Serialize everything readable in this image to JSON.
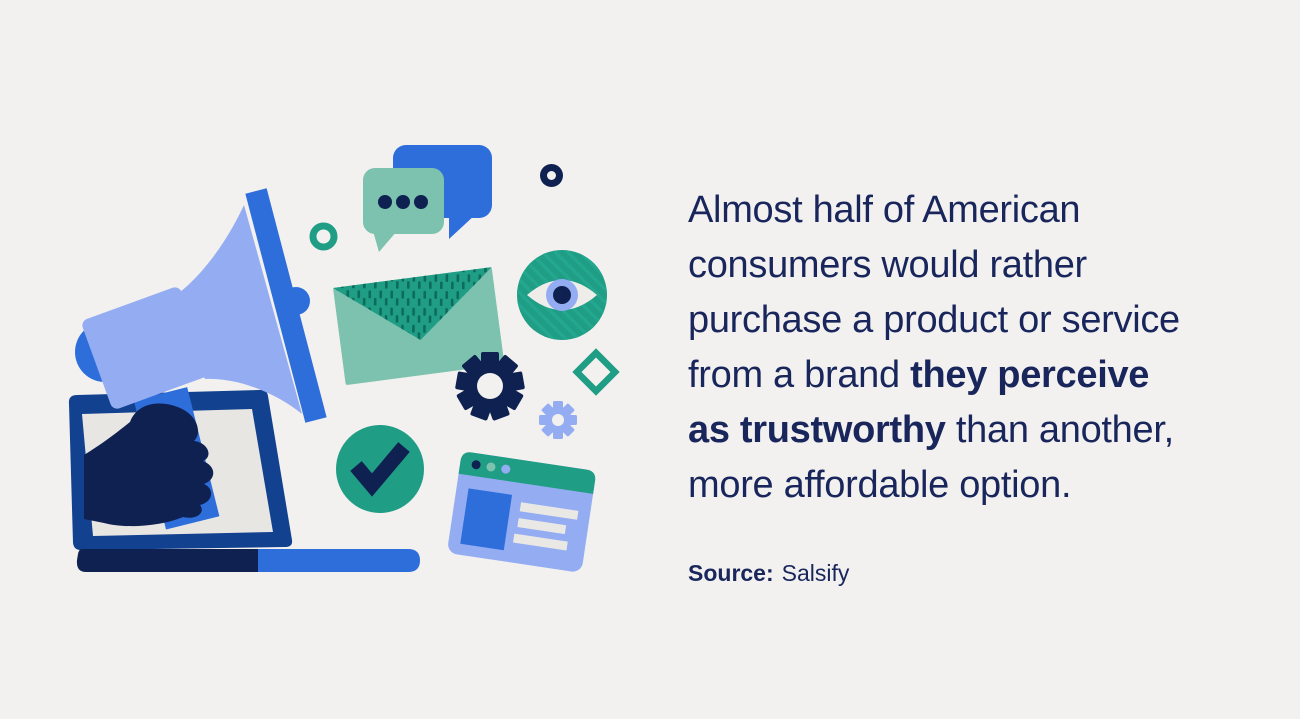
{
  "background_color": "#f3f1ef",
  "quote": {
    "lines": [
      {
        "segments": [
          {
            "text": "Almost half of American",
            "bold": false
          }
        ]
      },
      {
        "segments": [
          {
            "text": "consumers would rather",
            "bold": false
          }
        ]
      },
      {
        "segments": [
          {
            "text": "purchase a product or service",
            "bold": false
          }
        ]
      },
      {
        "segments": [
          {
            "text": "from a brand ",
            "bold": false
          },
          {
            "text": "they perceive",
            "bold": true
          }
        ]
      },
      {
        "segments": [
          {
            "text": "as trustworthy",
            "bold": true
          },
          {
            "text": " than another,",
            "bold": false
          }
        ]
      },
      {
        "segments": [
          {
            "text": "more affordable option.",
            "bold": false
          }
        ]
      }
    ],
    "full_text": "Almost half of American consumers would rather purchase a product or service from a brand they perceive as trustworthy than another, more affordable option."
  },
  "source": {
    "label": "Source:",
    "value": "Salsify"
  },
  "colors": {
    "background": "#f3f1ef",
    "text_navy": "#19265c",
    "illustration_navy": "#0e2150",
    "blue": "#2e6edb",
    "periwinkle": "#94adf2",
    "teal": "#1f9d85",
    "light_green": "#7cc2ae",
    "laptop_frame_blue": "#12418f",
    "screen_gray": "#e8e6e3"
  },
  "illustration": {
    "description": "Marketing illustration: hand emerging from laptop screen holding a megaphone, surrounded by floating icons",
    "icons": [
      "megaphone-icon",
      "laptop-icon",
      "hand-icon",
      "chat-bubbles-icon",
      "typing-dots-icon",
      "envelope-icon",
      "eye-icon",
      "gear-icon-large",
      "gear-icon-small",
      "checkmark-circle-icon",
      "browser-window-icon",
      "ring-icon",
      "donut-dot-icon",
      "diamond-icon"
    ]
  }
}
